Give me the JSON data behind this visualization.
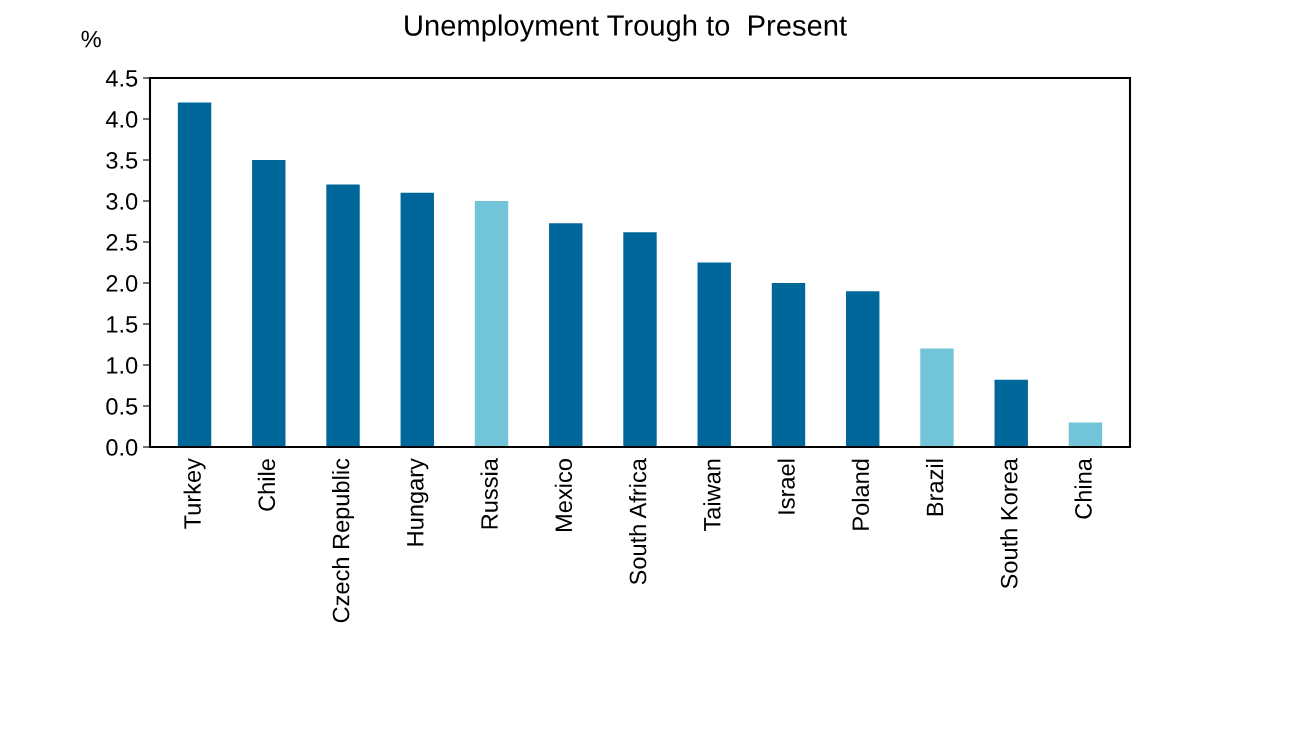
{
  "chart_data": {
    "type": "bar",
    "title": "Unemployment Trough to  Present",
    "ylabel": "%",
    "categories": [
      "Turkey",
      "Chile",
      "Czech Republic",
      "Hungary",
      "Russia",
      "Mexico",
      "South Africa",
      "Taiwan",
      "Israel",
      "Poland",
      "Brazil",
      "South Korea",
      "China"
    ],
    "values": [
      4.2,
      3.5,
      3.2,
      3.1,
      3.0,
      2.73,
      2.62,
      2.25,
      2.0,
      1.9,
      1.2,
      0.82,
      0.3
    ],
    "colors": [
      "#00679a",
      "#00679a",
      "#00679a",
      "#00679a",
      "#72c4d9",
      "#00679a",
      "#00679a",
      "#00679a",
      "#00679a",
      "#00679a",
      "#72c4d9",
      "#00679a",
      "#72c4d9"
    ],
    "ylim": [
      0,
      4.5
    ],
    "yticks": [
      {
        "value": 0,
        "label": "0.0"
      },
      {
        "value": 0.5,
        "label": "0.5"
      },
      {
        "value": 1,
        "label": "1.0"
      },
      {
        "value": 1.5,
        "label": "1.5"
      },
      {
        "value": 2,
        "label": "2.0"
      },
      {
        "value": 2.5,
        "label": "2.5"
      },
      {
        "value": 3,
        "label": "3.0"
      },
      {
        "value": 3.5,
        "label": "3.5"
      },
      {
        "value": 4,
        "label": "4.0"
      },
      {
        "value": 4.5,
        "label": "4.5"
      }
    ],
    "grid": false,
    "legend": false
  }
}
